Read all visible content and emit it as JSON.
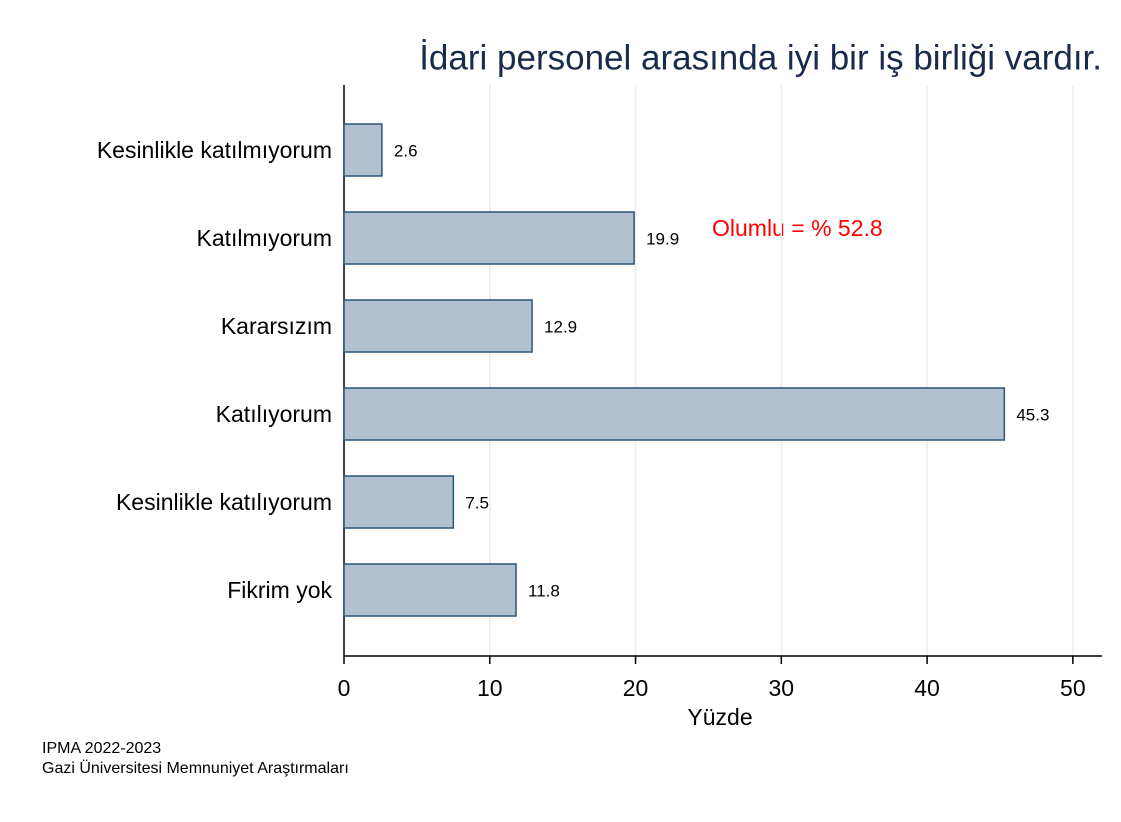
{
  "chart_data": {
    "type": "barh",
    "title": "İdari personel arasında iyi bir iş birliği vardır.",
    "categories": [
      "Kesinlikle katılmıyorum",
      "Katılmıyorum",
      "Kararsızım",
      "Katılıyorum",
      "Kesinlikle katılıyorum",
      "Fikrim yok"
    ],
    "values": [
      2.6,
      19.9,
      12.9,
      45.3,
      7.5,
      11.8
    ],
    "color": "#b1c1d0",
    "xlim": [
      0,
      52
    ],
    "xticks": [
      0,
      10,
      20,
      30,
      40,
      50
    ],
    "xlabel": "Yüzde",
    "grid": true,
    "annotation": "Olumlu = % 52.8",
    "notes": [
      "IPMA 2022-2023",
      "Gazi Üniversitesi Memnuniyet Araştırmaları"
    ]
  }
}
